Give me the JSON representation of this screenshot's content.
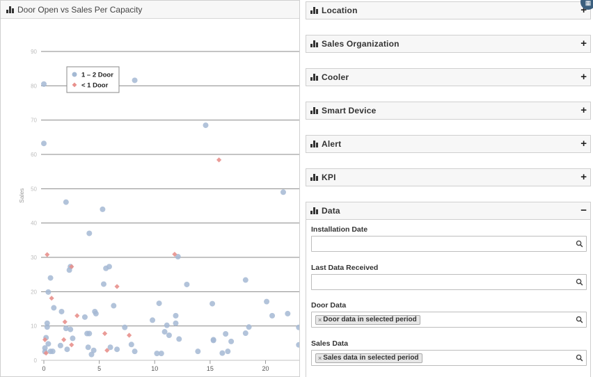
{
  "chart_panel": {
    "title": "Door Open vs Sales Per Capacity"
  },
  "chart_data": {
    "type": "scatter",
    "title": "Door Open vs Sales Per Capacity",
    "xlabel": "",
    "ylabel": "Sales",
    "xlim": [
      0,
      23
    ],
    "ylim": [
      0,
      90
    ],
    "x_ticks": [
      "0",
      "5",
      "10",
      "15",
      "20"
    ],
    "x_tick_values": [
      0,
      5,
      10,
      15,
      20
    ],
    "y_ticks": [
      "0",
      "10",
      "20",
      "30",
      "40",
      "50",
      "60",
      "70",
      "80",
      "90"
    ],
    "y_tick_values": [
      0,
      10,
      20,
      30,
      40,
      50,
      60,
      70,
      80,
      90
    ],
    "grid": true,
    "legend_position": "top-left",
    "series": [
      {
        "name": "1 – 2 Door",
        "color": "#a4b9d3",
        "marker": "circle",
        "points": [
          [
            0,
            80.5
          ],
          [
            0,
            63.2
          ],
          [
            8.2,
            81.6
          ],
          [
            14.6,
            68.5
          ],
          [
            21.6,
            49.0
          ],
          [
            2.0,
            46.1
          ],
          [
            5.3,
            44.0
          ],
          [
            4.1,
            37.0
          ],
          [
            0.6,
            24.0
          ],
          [
            0.4,
            19.9
          ],
          [
            0.9,
            15.3
          ],
          [
            1.6,
            14.2
          ],
          [
            2.3,
            26.3
          ],
          [
            2.4,
            27.3
          ],
          [
            5.6,
            26.8
          ],
          [
            5.9,
            27.3
          ],
          [
            5.4,
            22.2
          ],
          [
            12.1,
            30.2
          ],
          [
            12.9,
            22.1
          ],
          [
            18.2,
            23.4
          ],
          [
            15.2,
            16.5
          ],
          [
            20.1,
            17.1
          ],
          [
            22.0,
            13.6
          ],
          [
            20.6,
            13.0
          ],
          [
            3.7,
            12.6
          ],
          [
            4.6,
            14.2
          ],
          [
            4.7,
            13.6
          ],
          [
            6.3,
            15.9
          ],
          [
            7.3,
            9.6
          ],
          [
            9.8,
            11.7
          ],
          [
            10.4,
            16.6
          ],
          [
            11.1,
            10.2
          ],
          [
            11.9,
            13.0
          ],
          [
            11.9,
            10.8
          ],
          [
            10.9,
            8.3
          ],
          [
            11.3,
            7.3
          ],
          [
            12.2,
            6.2
          ],
          [
            0.3,
            10.8
          ],
          [
            0.3,
            9.7
          ],
          [
            0.2,
            6.6
          ],
          [
            0.1,
            3.6
          ],
          [
            0.4,
            4.8
          ],
          [
            0.1,
            2.5
          ],
          [
            0.6,
            2.6
          ],
          [
            0.8,
            2.6
          ],
          [
            1.5,
            4.3
          ],
          [
            2.0,
            9.3
          ],
          [
            2.1,
            3.2
          ],
          [
            2.4,
            9.0
          ],
          [
            2.6,
            6.4
          ],
          [
            3.9,
            7.8
          ],
          [
            4.1,
            7.8
          ],
          [
            4.0,
            3.8
          ],
          [
            4.3,
            1.7
          ],
          [
            4.5,
            2.9
          ],
          [
            6.0,
            3.8
          ],
          [
            6.6,
            3.2
          ],
          [
            8.2,
            2.6
          ],
          [
            7.9,
            4.6
          ],
          [
            10.2,
            2.0
          ],
          [
            10.6,
            2.0
          ],
          [
            13.9,
            2.6
          ],
          [
            15.3,
            5.8
          ],
          [
            15.3,
            6.0
          ],
          [
            16.1,
            2.1
          ],
          [
            16.4,
            7.7
          ],
          [
            16.9,
            5.5
          ],
          [
            16.6,
            2.6
          ],
          [
            18.2,
            7.9
          ],
          [
            18.5,
            9.7
          ],
          [
            23.0,
            9.6
          ],
          [
            23.0,
            4.5
          ]
        ]
      },
      {
        "name": "< 1 Door",
        "color": "#e8908c",
        "marker": "diamond",
        "points": [
          [
            15.8,
            58.4
          ],
          [
            0.3,
            30.8
          ],
          [
            11.8,
            30.9
          ],
          [
            2.5,
            27.3
          ],
          [
            6.6,
            21.5
          ],
          [
            0.7,
            18.1
          ],
          [
            1.9,
            11.2
          ],
          [
            3.0,
            13.0
          ],
          [
            0.1,
            6.0
          ],
          [
            0.2,
            2.1
          ],
          [
            1.8,
            6.0
          ],
          [
            2.5,
            4.5
          ],
          [
            5.5,
            7.8
          ],
          [
            5.7,
            2.9
          ],
          [
            7.7,
            7.3
          ]
        ]
      }
    ]
  },
  "filters": {
    "sections": [
      {
        "label": "Location",
        "toggle": "+"
      },
      {
        "label": "Sales Organization",
        "toggle": "+"
      },
      {
        "label": "Cooler",
        "toggle": "+"
      },
      {
        "label": "Smart Device",
        "toggle": "+"
      },
      {
        "label": "Alert",
        "toggle": "+"
      },
      {
        "label": "KPI",
        "toggle": "+"
      },
      {
        "label": "Data",
        "toggle": "−"
      }
    ],
    "data_fields": [
      {
        "label": "Installation Date",
        "value": "",
        "chip": ""
      },
      {
        "label": "Last Data Received",
        "value": "",
        "chip": ""
      },
      {
        "label": "Door Data",
        "value": "",
        "chip": "Door data in selected period"
      },
      {
        "label": "Sales Data",
        "value": "",
        "chip": "Sales data in selected period"
      }
    ],
    "chip_remove": "×"
  }
}
